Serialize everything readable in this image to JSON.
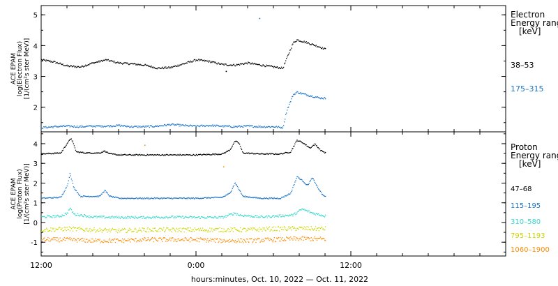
{
  "chart_data": [
    {
      "type": "scatter",
      "panel": "electron",
      "ylabel_lines": [
        "ACE EPAM",
        "log(Electron Flux)",
        "[1/(cm²s ster MeV)]"
      ],
      "yticks": [
        "2",
        "3",
        "4",
        "5"
      ],
      "ylim": [
        1.2,
        5.3
      ],
      "legend_title": [
        "Electron",
        "Energy range",
        "[keV]"
      ],
      "legend_placement": "right",
      "series": [
        {
          "name": "38–53",
          "color": "#000000",
          "points": [
            [
              0,
              3.55
            ],
            [
              1,
              3.48
            ],
            [
              2,
              3.35
            ],
            [
              3,
              3.32
            ],
            [
              4,
              3.45
            ],
            [
              5,
              3.55
            ],
            [
              6,
              3.45
            ],
            [
              7,
              3.42
            ],
            [
              8,
              3.38
            ],
            [
              9,
              3.28
            ],
            [
              10,
              3.3
            ],
            [
              11,
              3.42
            ],
            [
              12,
              3.55
            ],
            [
              13,
              3.5
            ],
            [
              14,
              3.4
            ],
            [
              15,
              3.38
            ],
            [
              16,
              3.45
            ],
            [
              17,
              3.38
            ],
            [
              18,
              3.32
            ],
            [
              18.7,
              3.28
            ],
            [
              19.0,
              3.6
            ],
            [
              19.5,
              4.1
            ],
            [
              19.8,
              4.2
            ],
            [
              20.5,
              4.12
            ],
            [
              21.5,
              3.98
            ],
            [
              22,
              3.9
            ]
          ],
          "outliers": [
            [
              14.3,
              3.18
            ]
          ]
        },
        {
          "name": "175–315",
          "color": "#1a73c8",
          "points": [
            [
              0,
              1.35
            ],
            [
              1,
              1.38
            ],
            [
              2,
              1.4
            ],
            [
              3,
              1.38
            ],
            [
              4,
              1.4
            ],
            [
              5,
              1.4
            ],
            [
              6,
              1.42
            ],
            [
              7,
              1.38
            ],
            [
              8,
              1.38
            ],
            [
              9,
              1.4
            ],
            [
              10,
              1.45
            ],
            [
              11,
              1.42
            ],
            [
              12,
              1.4
            ],
            [
              13,
              1.42
            ],
            [
              14,
              1.4
            ],
            [
              15,
              1.38
            ],
            [
              16,
              1.4
            ],
            [
              17,
              1.38
            ],
            [
              18,
              1.38
            ],
            [
              18.7,
              1.35
            ],
            [
              19.0,
              1.9
            ],
            [
              19.5,
              2.42
            ],
            [
              19.8,
              2.5
            ],
            [
              20.5,
              2.42
            ],
            [
              21.5,
              2.32
            ],
            [
              22,
              2.3
            ]
          ],
          "outliers": [
            [
              16.9,
              4.9
            ]
          ]
        }
      ]
    },
    {
      "type": "scatter",
      "panel": "proton",
      "ylabel_lines": [
        "ACE EPAM",
        "log(Proton Flux)",
        "[1/(cm²s ster MeV)]"
      ],
      "yticks": [
        "-1",
        "0",
        "1",
        "2",
        "3",
        "4"
      ],
      "ylim": [
        -1.7,
        4.6
      ],
      "legend_title": [
        "Proton",
        "Energy range",
        "[keV]"
      ],
      "legend_placement": "right",
      "series": [
        {
          "name": "47–68",
          "color": "#000000",
          "points": [
            [
              0,
              3.5
            ],
            [
              1.5,
              3.55
            ],
            [
              2.0,
              4.05
            ],
            [
              2.3,
              4.3
            ],
            [
              2.7,
              3.6
            ],
            [
              3.5,
              3.55
            ],
            [
              4.5,
              3.55
            ],
            [
              4.9,
              3.65
            ],
            [
              5.3,
              3.5
            ],
            [
              6,
              3.45
            ],
            [
              8,
              3.45
            ],
            [
              10,
              3.45
            ],
            [
              12,
              3.45
            ],
            [
              14,
              3.5
            ],
            [
              14.6,
              3.7
            ],
            [
              15.0,
              4.15
            ],
            [
              15.3,
              4.05
            ],
            [
              15.6,
              3.55
            ],
            [
              17,
              3.5
            ],
            [
              18.5,
              3.5
            ],
            [
              19.3,
              3.6
            ],
            [
              19.8,
              4.2
            ],
            [
              20.3,
              4.05
            ],
            [
              20.8,
              3.8
            ],
            [
              21.2,
              4.0
            ],
            [
              21.6,
              3.7
            ],
            [
              22,
              3.55
            ]
          ]
        },
        {
          "name": "115–195",
          "color": "#1a73c8",
          "points": [
            [
              0,
              1.25
            ],
            [
              1.5,
              1.3
            ],
            [
              2.0,
              1.9
            ],
            [
              2.2,
              2.5
            ],
            [
              2.5,
              1.8
            ],
            [
              3.0,
              1.35
            ],
            [
              4.5,
              1.35
            ],
            [
              4.9,
              1.65
            ],
            [
              5.3,
              1.35
            ],
            [
              6,
              1.25
            ],
            [
              8,
              1.25
            ],
            [
              10,
              1.25
            ],
            [
              12,
              1.25
            ],
            [
              14,
              1.3
            ],
            [
              14.6,
              1.5
            ],
            [
              15.0,
              2.05
            ],
            [
              15.3,
              1.7
            ],
            [
              15.6,
              1.35
            ],
            [
              17,
              1.25
            ],
            [
              18.5,
              1.25
            ],
            [
              19.3,
              1.5
            ],
            [
              19.8,
              2.35
            ],
            [
              20.3,
              2.1
            ],
            [
              20.6,
              1.9
            ],
            [
              21.0,
              2.3
            ],
            [
              21.3,
              1.9
            ],
            [
              21.8,
              1.4
            ],
            [
              22,
              1.35
            ]
          ]
        },
        {
          "name": "310–580",
          "color": "#33d6cc",
          "points": [
            [
              0,
              0.3
            ],
            [
              1.5,
              0.35
            ],
            [
              2.0,
              0.5
            ],
            [
              2.2,
              0.75
            ],
            [
              2.5,
              0.45
            ],
            [
              4,
              0.3
            ],
            [
              6,
              0.28
            ],
            [
              8,
              0.28
            ],
            [
              10,
              0.3
            ],
            [
              12,
              0.28
            ],
            [
              14,
              0.28
            ],
            [
              15,
              0.5
            ],
            [
              15.3,
              0.4
            ],
            [
              17,
              0.3
            ],
            [
              19.5,
              0.4
            ],
            [
              20.2,
              0.7
            ],
            [
              21,
              0.5
            ],
            [
              22,
              0.35
            ]
          ]
        },
        {
          "name": "795–1193",
          "color": "#ccd600",
          "points": [
            [
              0,
              -0.35
            ],
            [
              2,
              -0.3
            ],
            [
              4,
              -0.35
            ],
            [
              6,
              -0.4
            ],
            [
              8,
              -0.35
            ],
            [
              10,
              -0.35
            ],
            [
              12,
              -0.35
            ],
            [
              14,
              -0.35
            ],
            [
              16,
              -0.35
            ],
            [
              18,
              -0.3
            ],
            [
              20,
              -0.28
            ],
            [
              22,
              -0.3
            ]
          ]
        },
        {
          "name": "1060–1900",
          "color": "#ff8c00",
          "points": [
            [
              0,
              -0.85
            ],
            [
              2,
              -0.85
            ],
            [
              4,
              -0.9
            ],
            [
              6,
              -0.9
            ],
            [
              8,
              -0.85
            ],
            [
              10,
              -0.85
            ],
            [
              12,
              -0.85
            ],
            [
              14,
              -0.9
            ],
            [
              16,
              -0.9
            ],
            [
              18,
              -0.85
            ],
            [
              20,
              -0.8
            ],
            [
              22,
              -0.82
            ]
          ],
          "outliers": [
            [
              8.0,
              3.95
            ],
            [
              14.1,
              2.85
            ]
          ]
        }
      ]
    }
  ],
  "x_axis": {
    "ticks": [
      {
        "hours": 0,
        "label": "12:00"
      },
      {
        "hours": 12,
        "label": "0:00"
      },
      {
        "hours": 24,
        "label": "12:00"
      }
    ],
    "minor_every_hours": 2,
    "xlim_hours": [
      0,
      36
    ],
    "label": "hours:minutes, Oct. 10, 2022 — Oct. 11, 2022"
  }
}
